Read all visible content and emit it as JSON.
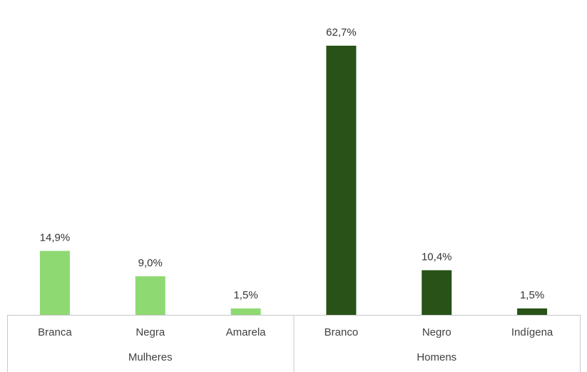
{
  "chart_data": {
    "type": "bar",
    "categories": [
      "Branca",
      "Negra",
      "Amarela",
      "Branco",
      "Negro",
      "Indígena"
    ],
    "category_labels": [
      "Branca",
      "Negra",
      "Amarela",
      "Branco",
      "Negro",
      "Indígena"
    ],
    "values": [
      14.9,
      9.0,
      1.5,
      62.7,
      10.4,
      1.5
    ],
    "data_labels": [
      "14,9%",
      "9,0%",
      "1,5%",
      "62,7%",
      "10,4%",
      "1,5%"
    ],
    "groups": [
      {
        "name": "Mulheres",
        "categories": [
          "Branca",
          "Negra",
          "Amarela"
        ],
        "color": "#8fd973"
      },
      {
        "name": "Homens",
        "categories": [
          "Branco",
          "Negro",
          "Indígena"
        ],
        "color": "#285217"
      }
    ],
    "ylim": [
      0,
      70
    ],
    "grid": false,
    "legend": "none"
  }
}
